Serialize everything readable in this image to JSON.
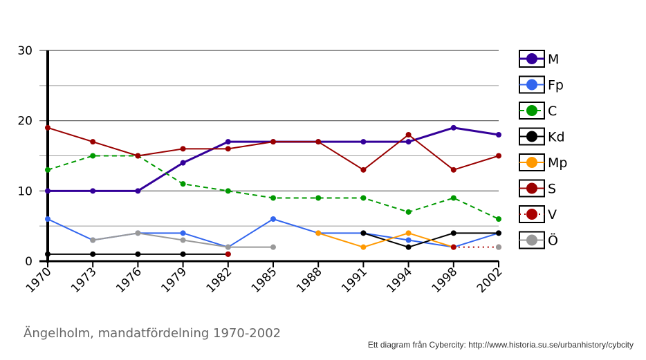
{
  "chart_data": {
    "type": "line",
    "title": "Ängelholm, mandatfördelning 1970-2002",
    "source": "Ett diagram från Cybercity: http://www.historia.su.se/urbanhistory/cybcity",
    "x": [
      "1970",
      "1973",
      "1976",
      "1979",
      "1982",
      "1985",
      "1988",
      "1991",
      "1994",
      "1998",
      "2002"
    ],
    "yticks": [
      "0",
      "10",
      "20",
      "30"
    ],
    "ylim": [
      0,
      30
    ],
    "grid": true,
    "legend_position": "right",
    "series": [
      {
        "name": "M",
        "color": "#330099",
        "dash": "solid",
        "width": 3,
        "values": [
          10,
          10,
          10,
          14,
          17,
          17,
          17,
          17,
          17,
          19,
          18
        ]
      },
      {
        "name": "Fp",
        "color": "#3366ee",
        "dash": "solid",
        "width": 2,
        "values": [
          6,
          3,
          4,
          4,
          2,
          6,
          4,
          4,
          3,
          2,
          4
        ]
      },
      {
        "name": "C",
        "color": "#009900",
        "dash": "dashed",
        "width": 2,
        "values": [
          13,
          15,
          15,
          11,
          10,
          9,
          9,
          9,
          7,
          9,
          6
        ]
      },
      {
        "name": "Kd",
        "color": "#000000",
        "dash": "solid",
        "width": 2,
        "values": [
          1,
          1,
          1,
          1,
          1,
          null,
          null,
          4,
          2,
          4,
          4
        ]
      },
      {
        "name": "Mp",
        "color": "#ff9900",
        "dash": "solid",
        "width": 2,
        "values": [
          null,
          null,
          null,
          null,
          null,
          null,
          4,
          2,
          4,
          2,
          null
        ]
      },
      {
        "name": "S",
        "color": "#990000",
        "dash": "solid",
        "width": 2,
        "values": [
          19,
          17,
          15,
          16,
          16,
          17,
          17,
          13,
          18,
          13,
          15
        ]
      },
      {
        "name": "V",
        "color": "#aa0000",
        "dash": "dotted",
        "width": 2,
        "values": [
          null,
          null,
          null,
          null,
          1,
          null,
          null,
          null,
          null,
          2,
          2
        ]
      },
      {
        "name": "Ö",
        "color": "#999999",
        "dash": "solid",
        "width": 2,
        "values": [
          null,
          3,
          4,
          3,
          2,
          2,
          null,
          null,
          null,
          null,
          2
        ]
      }
    ]
  }
}
